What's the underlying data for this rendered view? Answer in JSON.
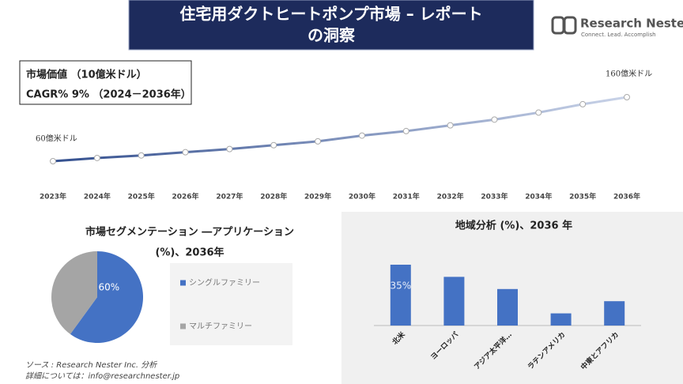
{
  "header": {
    "title": [
      "住宅用ダクトヒートポンプ市場 – レポート",
      "の洞察"
    ],
    "logo": {
      "name": "Research Nester",
      "tagline": "Connect. Lead. Accomplish"
    }
  },
  "chart_data": [
    {
      "type": "line",
      "market_value_label": "市場価値 （10億米ドル）",
      "cagr": "CAGR% 9% （2024－2036年）",
      "categories": [
        "2023年",
        "2024年",
        "2025年",
        "2026年",
        "2027年",
        "2028年",
        "2029年",
        "2030年",
        "2031年",
        "2032年",
        "2033年",
        "2034年",
        "2035年",
        "2036年"
      ],
      "values": [
        60,
        65,
        69,
        74,
        79,
        85,
        91,
        100,
        107,
        116,
        125,
        136,
        149,
        160
      ],
      "value_labels": [
        "60億米ドル",
        null,
        null,
        null,
        null,
        null,
        null,
        null,
        null,
        null,
        null,
        null,
        null,
        "160億米ドル"
      ],
      "colors": [
        "#34508f",
        "#c9d3e8"
      ]
    },
    {
      "type": "pie",
      "title": [
        "市場セグメンテーション ―アプリケーション",
        "(%)、2036年"
      ],
      "categories": [
        "シングルファミリー",
        "マルチファミリー"
      ],
      "values": [
        60,
        40
      ],
      "value_labels": [
        "60%",
        null
      ],
      "colors": [
        "#4472c4",
        "#a5a5a5"
      ]
    },
    {
      "type": "bar",
      "title": "地域分析 (%)、2036 年",
      "categories": [
        "北米",
        "ヨーロッパ",
        "アジア太平洋…",
        "ラテンアメリカ",
        "中東とアフリカ"
      ],
      "values": [
        35,
        28,
        21,
        7,
        14
      ],
      "value_labels": [
        "35%",
        null,
        null,
        null,
        null
      ],
      "color": "#4472c4"
    }
  ],
  "footer": {
    "source": "ソース : Research Nester Inc. 分析",
    "contact": "詳細については：info@researchnester.jp"
  }
}
